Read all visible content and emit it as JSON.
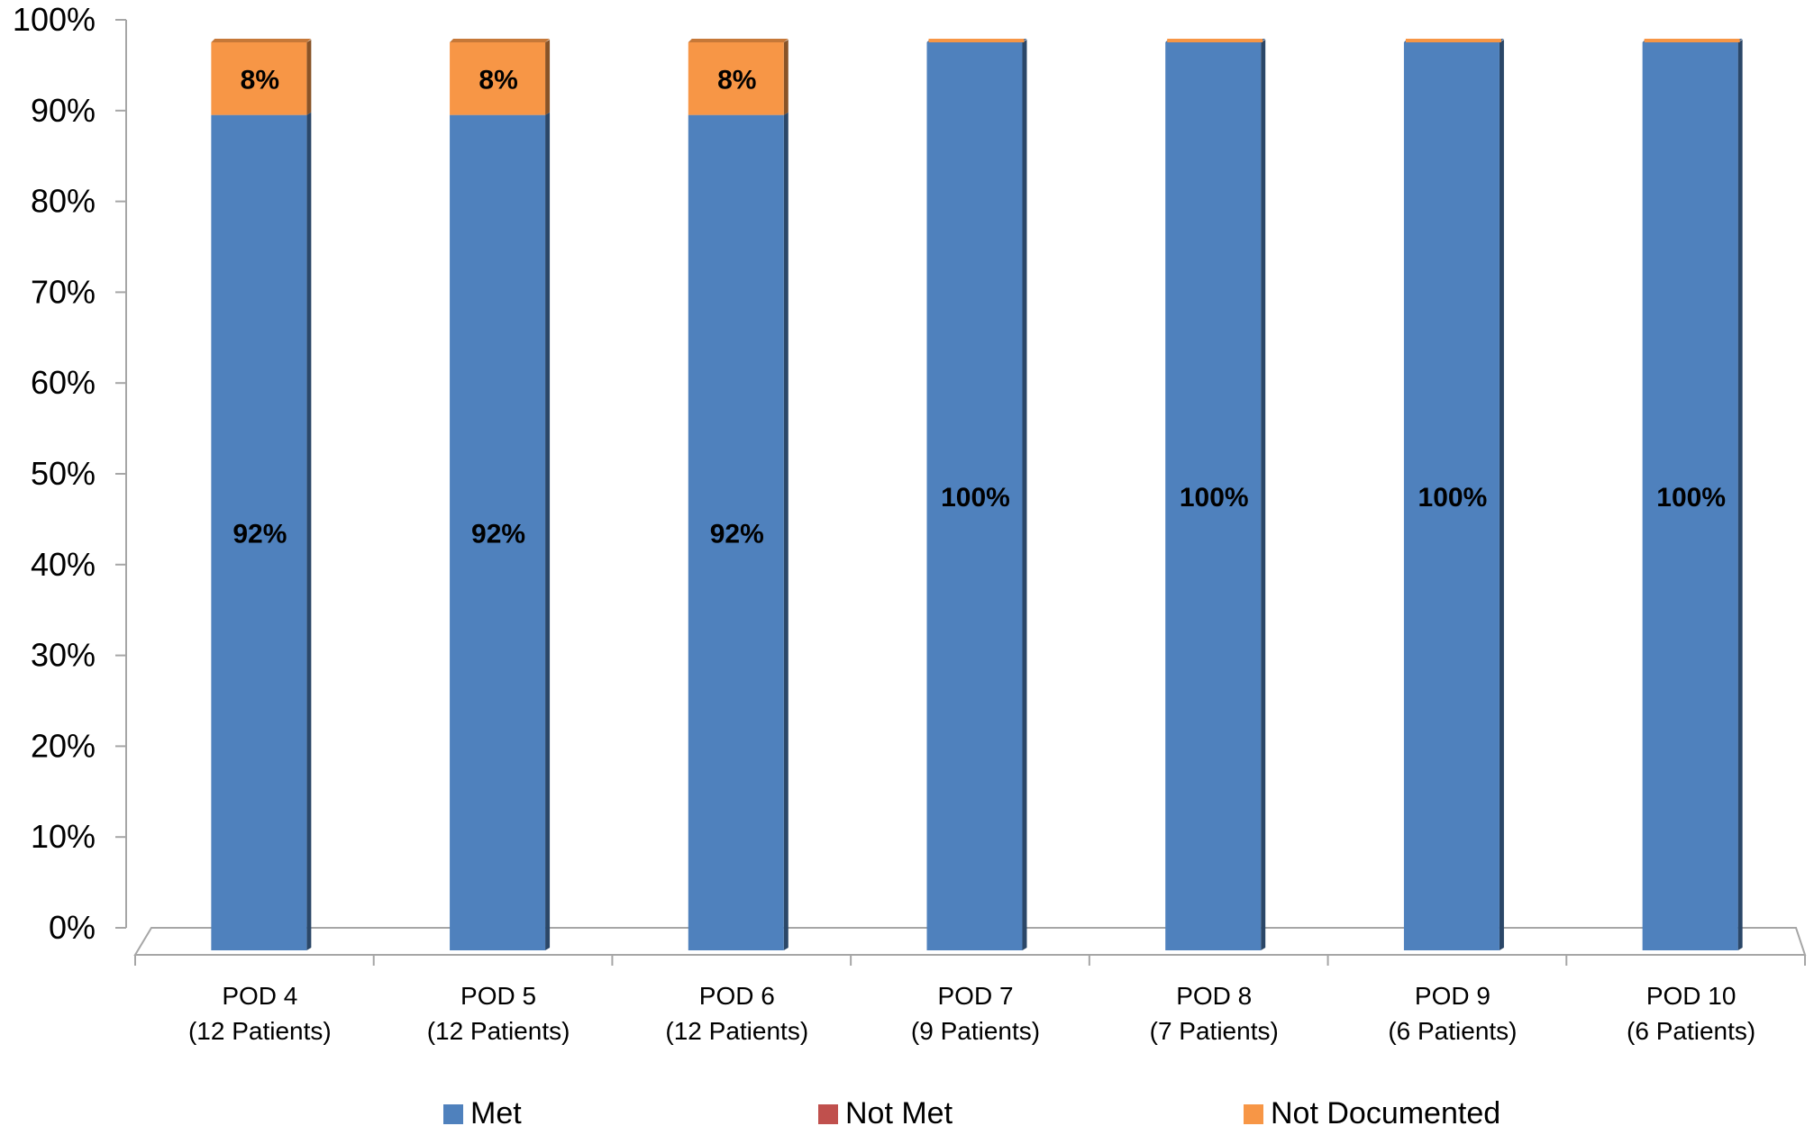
{
  "chart_data": {
    "type": "bar",
    "stacked": true,
    "three_d": true,
    "title": "",
    "xlabel": "",
    "ylabel": "",
    "ylim": [
      0,
      100
    ],
    "ytick_step": 10,
    "ytick_suffix": "%",
    "grid": false,
    "legend_position": "bottom",
    "categories": [
      [
        "POD 4",
        "(12 Patients)"
      ],
      [
        "POD 5",
        "(12 Patients)"
      ],
      [
        "POD 6",
        "(12 Patients)"
      ],
      [
        "POD 7",
        "(9 Patients)"
      ],
      [
        "POD 8",
        "(7 Patients)"
      ],
      [
        "POD 9",
        "(6 Patients)"
      ],
      [
        "POD 10",
        "(6 Patients)"
      ]
    ],
    "series": [
      {
        "name": "Met",
        "color": "#4f81bd",
        "values": [
          92,
          92,
          92,
          100,
          100,
          100,
          100
        ],
        "labels": [
          "92%",
          "92%",
          "92%",
          "100%",
          "100%",
          "100%",
          "100%"
        ]
      },
      {
        "name": "Not Met",
        "color": "#c0504d",
        "values": [
          0,
          0,
          0,
          0,
          0,
          0,
          0
        ],
        "labels": [
          "",
          "",
          "",
          "",
          "",
          "",
          ""
        ]
      },
      {
        "name": "Not Documented",
        "color": "#f79646",
        "values": [
          8,
          8,
          8,
          0,
          0,
          0,
          0
        ],
        "labels": [
          "8%",
          "8%",
          "8%",
          "",
          "",
          "",
          ""
        ]
      }
    ]
  }
}
